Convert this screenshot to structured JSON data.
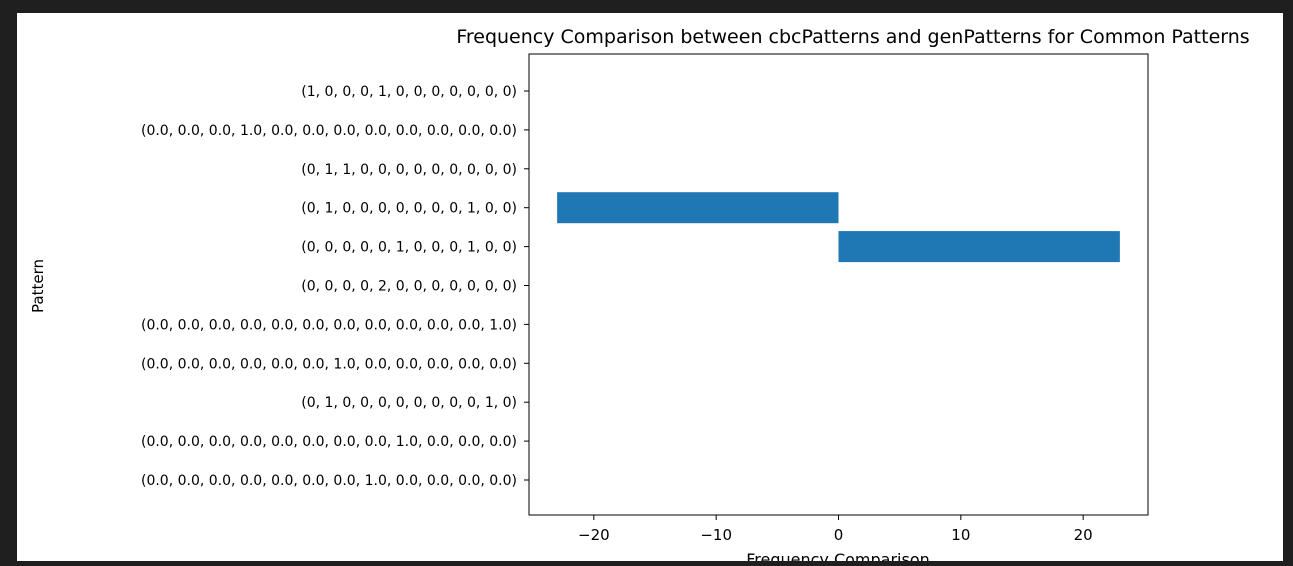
{
  "chart_data": {
    "type": "bar",
    "orientation": "horizontal",
    "title": "Frequency Comparison between cbcPatterns and genPatterns for Common Patterns",
    "xlabel": "Frequency Comparison",
    "ylabel": "Pattern",
    "xlim": [
      -25.3,
      25.3
    ],
    "xticks": [
      -20,
      -10,
      0,
      10,
      20
    ],
    "xtick_labels": [
      "−20",
      "−10",
      "0",
      "10",
      "20"
    ],
    "grid": false,
    "bar_color": "#1f77b4",
    "categories": [
      "(1, 0, 0, 0, 1, 0, 0, 0, 0, 0, 0, 0)",
      "(0.0, 0.0, 0.0, 1.0, 0.0, 0.0, 0.0, 0.0, 0.0, 0.0, 0.0, 0.0)",
      "(0, 1, 1, 0, 0, 0, 0, 0, 0, 0, 0, 0)",
      "(0, 1, 0, 0, 0, 0, 0, 0, 0, 1, 0, 0)",
      "(0, 0, 0, 0, 0, 1, 0, 0, 0, 1, 0, 0)",
      "(0, 0, 0, 0, 2, 0, 0, 0, 0, 0, 0, 0)",
      "(0.0, 0.0, 0.0, 0.0, 0.0, 0.0, 0.0, 0.0, 0.0, 0.0, 0.0, 1.0)",
      "(0.0, 0.0, 0.0, 0.0, 0.0, 0.0, 1.0, 0.0, 0.0, 0.0, 0.0, 0.0)",
      "(0, 1, 0, 0, 0, 0, 0, 0, 0, 0, 1, 0)",
      "(0.0, 0.0, 0.0, 0.0, 0.0, 0.0, 0.0, 0.0, 1.0, 0.0, 0.0, 0.0)",
      "(0.0, 0.0, 0.0, 0.0, 0.0, 0.0, 0.0, 1.0, 0.0, 0.0, 0.0, 0.0)"
    ],
    "values": [
      0,
      0,
      0,
      -23,
      23,
      0,
      0,
      0,
      0,
      0,
      0
    ]
  }
}
